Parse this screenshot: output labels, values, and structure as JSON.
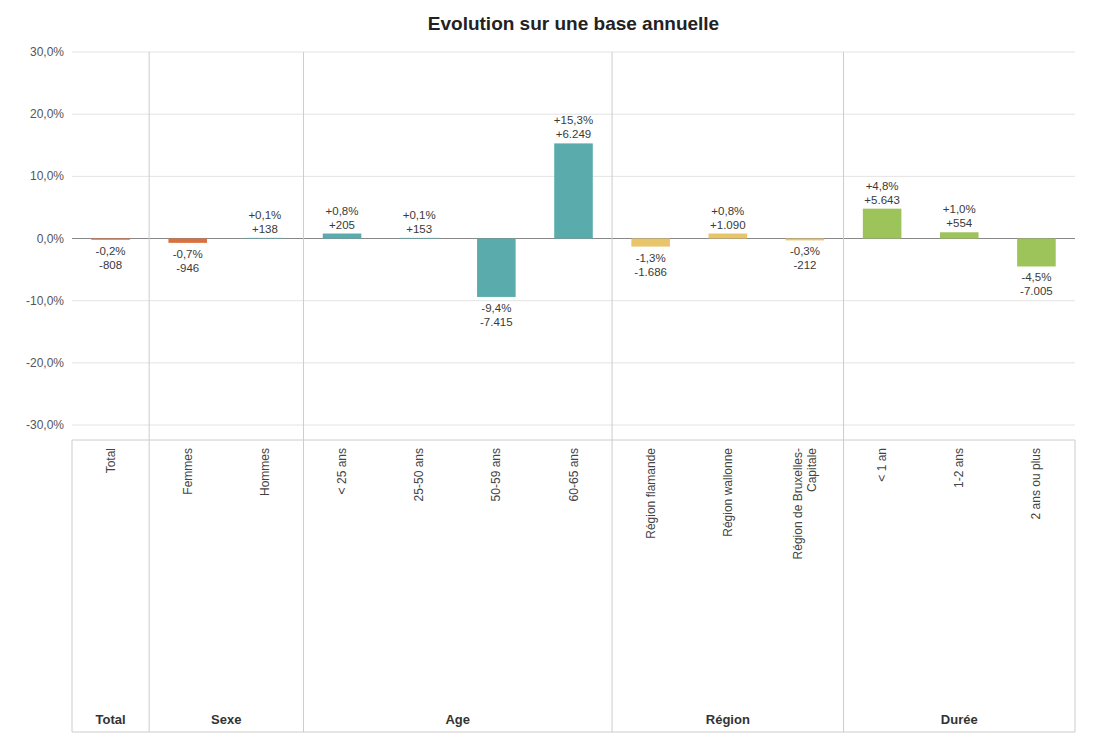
{
  "chart_data": {
    "type": "bar",
    "title": "Evolution sur une base annuelle",
    "categories": [
      "Total",
      "Femmes",
      "Hommes",
      "< 25 ans",
      "25-50 ans",
      "50-59 ans",
      "60-65 ans",
      "Région flamande",
      "Région wallonne",
      "Région de Bruxelles-\nCapitale",
      "< 1 an",
      "1-2 ans",
      "2 ans ou plus"
    ],
    "values": [
      -0.2,
      -0.7,
      0.1,
      0.8,
      0.1,
      -9.4,
      15.3,
      -1.3,
      0.8,
      -0.3,
      4.8,
      1.0,
      -4.5
    ],
    "value_labels": [
      "-0,2%",
      "-0,7%",
      "+0,1%",
      "+0,8%",
      "+0,1%",
      "-9,4%",
      "+15,3%",
      "-1,3%",
      "+0,8%",
      "-0,3%",
      "+4,8%",
      "+1,0%",
      "-4,5%"
    ],
    "annotations": [
      "-808",
      "-946",
      "+138",
      "+205",
      "+153",
      "-7.415",
      "+6.249",
      "-1.686",
      "+1.090",
      "-212",
      "+5.643",
      "+554",
      "-7.005"
    ],
    "colors": [
      "#d9703e",
      "#d9703e",
      "#5aacac",
      "#5aacac",
      "#5aacac",
      "#5aacac",
      "#5aacac",
      "#e8c46a",
      "#e8c46a",
      "#e8c46a",
      "#9dc45a",
      "#9dc45a",
      "#9dc45a"
    ],
    "groups": [
      {
        "name": "Total",
        "count": 1
      },
      {
        "name": "Sexe",
        "count": 2
      },
      {
        "name": "Age",
        "count": 4
      },
      {
        "name": "Région",
        "count": 3
      },
      {
        "name": "Durée",
        "count": 3
      }
    ],
    "ylim": [
      -30,
      30
    ],
    "yticks": [
      {
        "value": -30,
        "label": "-30,0%"
      },
      {
        "value": -20,
        "label": "-20,0%"
      },
      {
        "value": -10,
        "label": "-10,0%"
      },
      {
        "value": 0,
        "label": "0,0%"
      },
      {
        "value": 10,
        "label": "10,0%"
      },
      {
        "value": 20,
        "label": "20,0%"
      },
      {
        "value": 30,
        "label": "30,0%"
      }
    ],
    "grid": true,
    "data_labels": true
  }
}
